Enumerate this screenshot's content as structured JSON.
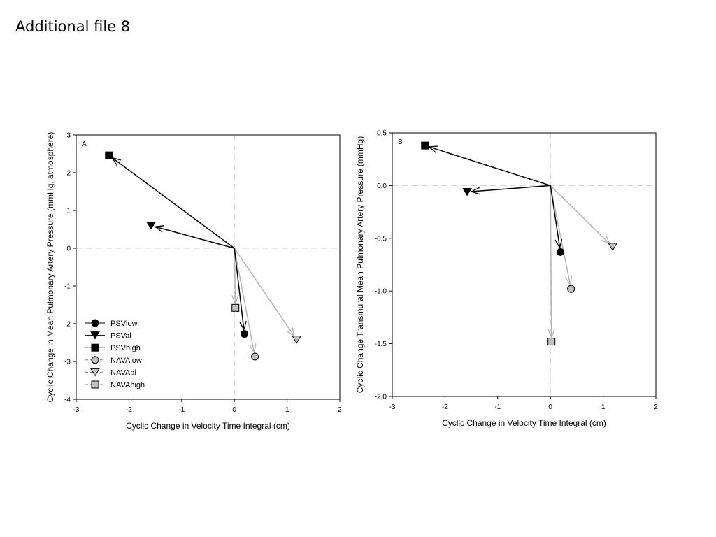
{
  "page": {
    "title": "Additional file 8"
  },
  "chart_data": [
    {
      "type": "scatter",
      "panel_label": "A",
      "xlabel": "Cyclic Change in Velocity Time Integral (cm)",
      "ylabel": "Cyclic Change in Mean Pulmonary Artery Pressure (mmHg, atmosphere)",
      "xlim": [
        -3,
        2
      ],
      "ylim": [
        -4,
        3
      ],
      "xticks": [
        -3,
        -2,
        -1,
        0,
        1,
        2
      ],
      "xtick_labels": [
        "-3",
        "-2",
        "-1",
        "0",
        "1",
        "2"
      ],
      "yticks": [
        -4,
        -3,
        -2,
        -1,
        0,
        1,
        2,
        3
      ],
      "ytick_labels": [
        "-4",
        "-3",
        "-2",
        "-1",
        "0",
        "1",
        "2",
        "3"
      ],
      "grid": false,
      "zero_lines": true,
      "legend_position": "bottom-left",
      "series": [
        {
          "name": "PSVlow",
          "marker": "circle",
          "fill": "#000000",
          "line": "#000000",
          "x": [
            0,
            0.19
          ],
          "y": [
            0,
            -2.27
          ]
        },
        {
          "name": "PSVal",
          "marker": "triangle",
          "fill": "#000000",
          "line": "#000000",
          "x": [
            0,
            -1.58
          ],
          "y": [
            0,
            0.6
          ]
        },
        {
          "name": "PSVhigh",
          "marker": "square",
          "fill": "#000000",
          "line": "#000000",
          "x": [
            0,
            -2.38
          ],
          "y": [
            0,
            2.46
          ]
        },
        {
          "name": "NAVAlow",
          "marker": "circle",
          "fill": "#c0c0c0",
          "line": "#b5b5b5",
          "x": [
            0,
            0.39
          ],
          "y": [
            0,
            -2.87
          ]
        },
        {
          "name": "NAVAal",
          "marker": "triangle",
          "fill": "#c0c0c0",
          "line": "#b5b5b5",
          "x": [
            0,
            1.18
          ],
          "y": [
            0,
            -2.42
          ]
        },
        {
          "name": "NAVAhigh",
          "marker": "square",
          "fill": "#c0c0c0",
          "line": "#b5b5b5",
          "x": [
            0,
            0.02
          ],
          "y": [
            0,
            -1.58
          ]
        }
      ]
    },
    {
      "type": "scatter",
      "panel_label": "B",
      "xlabel": "Cyclic Change in Velocity Time Integral (cm)",
      "ylabel": "Cyclic Change Transmural Mean Pulmonary Artery Pressure (mmHg)",
      "xlim": [
        -3,
        2
      ],
      "ylim": [
        -2,
        0.5
      ],
      "xticks": [
        -3,
        -2,
        -1,
        0,
        1,
        2
      ],
      "xtick_labels": [
        "-3",
        "-2",
        "-1",
        "0",
        "1",
        "2"
      ],
      "yticks": [
        -2,
        -1.5,
        -1,
        -0.5,
        0,
        0.5
      ],
      "ytick_labels": [
        "-2,0",
        "-1,5",
        "-1,0",
        "-0,5",
        "0,0",
        "0,5"
      ],
      "grid": false,
      "zero_lines": true,
      "series": [
        {
          "marker": "circle",
          "fill": "#000000",
          "line": "#000000",
          "x": [
            0,
            0.19
          ],
          "y": [
            0,
            -0.63
          ]
        },
        {
          "marker": "triangle",
          "fill": "#000000",
          "line": "#000000",
          "x": [
            0,
            -1.58
          ],
          "y": [
            0,
            -0.06
          ]
        },
        {
          "marker": "square",
          "fill": "#000000",
          "line": "#000000",
          "x": [
            0,
            -2.38
          ],
          "y": [
            0,
            0.38
          ]
        },
        {
          "marker": "circle",
          "fill": "#c0c0c0",
          "line": "#b5b5b5",
          "x": [
            0,
            0.39
          ],
          "y": [
            0,
            -0.98
          ]
        },
        {
          "marker": "triangle",
          "fill": "#c0c0c0",
          "line": "#b5b5b5",
          "x": [
            0,
            1.18
          ],
          "y": [
            0,
            -0.58
          ]
        },
        {
          "marker": "square",
          "fill": "#c0c0c0",
          "line": "#b5b5b5",
          "x": [
            0,
            0.02
          ],
          "y": [
            0,
            -1.48
          ]
        }
      ]
    }
  ]
}
